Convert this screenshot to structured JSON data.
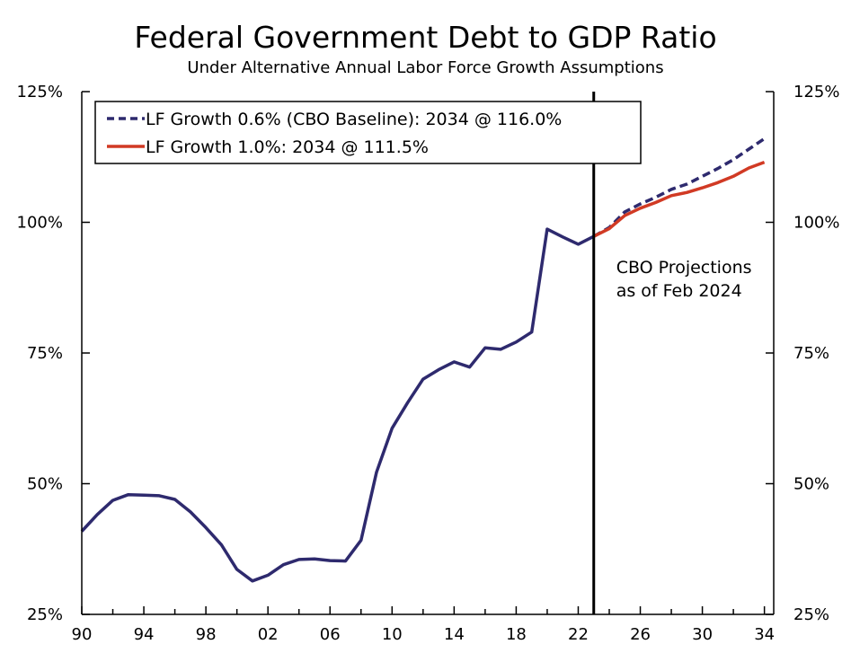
{
  "chart_data": {
    "type": "line",
    "title": "Federal Government Debt to GDP Ratio",
    "subtitle": "Under Alternative Annual Labor Force Growth Assumptions",
    "xlabel": "",
    "ylabel": "",
    "xlim": [
      1990,
      2034.6
    ],
    "ylim": [
      25,
      125
    ],
    "x_tick_values": [
      1990,
      1994,
      1998,
      2002,
      2006,
      2010,
      2014,
      2018,
      2022,
      2026,
      2030,
      2034
    ],
    "x_tick_labels": [
      "90",
      "94",
      "98",
      "02",
      "06",
      "10",
      "14",
      "18",
      "22",
      "26",
      "30",
      "34"
    ],
    "y_tick_values": [
      25,
      50,
      75,
      100,
      125
    ],
    "y_tick_labels": [
      "25%",
      "50%",
      "75%",
      "100%",
      "125%"
    ],
    "grid": false,
    "legend_position": "top-left",
    "projection_start": 2023,
    "annotation": [
      "CBO Projections",
      "as of Feb 2024"
    ],
    "series": [
      {
        "name": "LF Growth 0.6% (CBO Baseline): 2034 @ 116.0%",
        "color": "#2e2a6e",
        "style": "solid-then-dashed",
        "x": [
          1990,
          1991,
          1992,
          1993,
          1994,
          1995,
          1996,
          1997,
          1998,
          1999,
          2000,
          2001,
          2002,
          2003,
          2004,
          2005,
          2006,
          2007,
          2008,
          2009,
          2010,
          2011,
          2012,
          2013,
          2014,
          2015,
          2016,
          2017,
          2018,
          2019,
          2020,
          2021,
          2022,
          2023,
          2024,
          2025,
          2026,
          2027,
          2028,
          2029,
          2030,
          2031,
          2032,
          2033,
          2034
        ],
        "values": [
          40.9,
          44.1,
          46.8,
          47.9,
          47.8,
          47.7,
          47.0,
          44.6,
          41.6,
          38.3,
          33.6,
          31.4,
          32.5,
          34.5,
          35.5,
          35.6,
          35.3,
          35.2,
          39.2,
          52.2,
          60.6,
          65.5,
          70.0,
          71.8,
          73.3,
          72.3,
          76.0,
          75.7,
          77.1,
          79.0,
          98.7,
          97.2,
          95.8,
          97.3,
          99.0,
          102.0,
          103.5,
          104.8,
          106.3,
          107.3,
          108.8,
          110.3,
          112.0,
          114.0,
          116.0
        ]
      },
      {
        "name": "LF Growth 1.0%: 2034 @ 111.5%",
        "color": "#d13a24",
        "style": "solid",
        "x": [
          2023,
          2024,
          2025,
          2026,
          2027,
          2028,
          2029,
          2030,
          2031,
          2032,
          2033,
          2034
        ],
        "values": [
          97.3,
          98.8,
          101.3,
          102.7,
          103.8,
          105.1,
          105.7,
          106.6,
          107.6,
          108.8,
          110.4,
          111.5
        ]
      }
    ]
  }
}
